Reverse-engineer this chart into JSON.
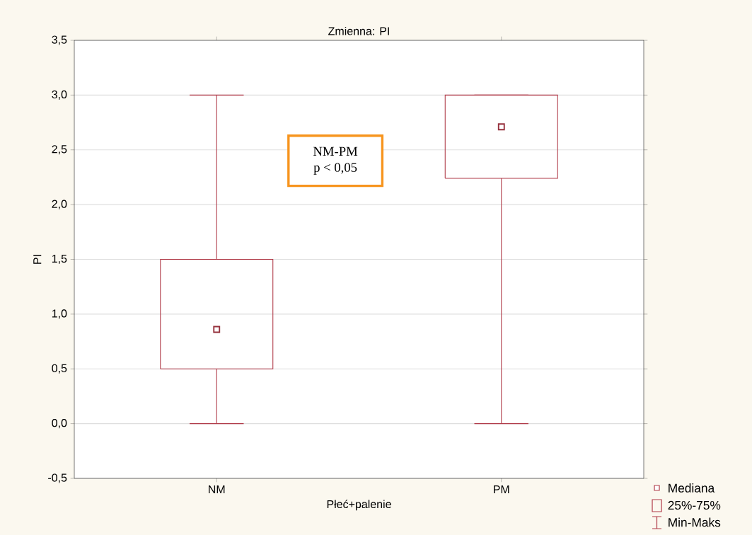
{
  "chart_data": {
    "type": "box",
    "title": "Zmienna:  PI",
    "xlabel": "Płeć+palenie",
    "ylabel": "PI",
    "categories": [
      "NM",
      "PM"
    ],
    "boxes": [
      {
        "low": 0,
        "q1": 0.5,
        "median": 0.86,
        "q3": 1.5,
        "high": 3.0
      },
      {
        "low": 0,
        "q1": 2.24,
        "median": 2.71,
        "q3": 3.0,
        "high": 3.0
      }
    ],
    "color": "#b03a48",
    "ylim": [
      -0.5,
      3.5
    ],
    "yticks": [
      {
        "value": -0.5,
        "label": "-0,5"
      },
      {
        "value": 0,
        "label": "0,0"
      },
      {
        "value": 0.5,
        "label": "0,5"
      },
      {
        "value": 1,
        "label": "1,0"
      },
      {
        "value": 1.5,
        "label": "1,5"
      },
      {
        "value": 2,
        "label": "2,0"
      },
      {
        "value": 2.5,
        "label": "2,5"
      },
      {
        "value": 3,
        "label": "3,0"
      },
      {
        "value": 3.5,
        "label": "3,5"
      }
    ],
    "grid": "y",
    "marker": "square",
    "annotations": [
      "NM-PM",
      "p < 0,05",
      "Mediana",
      "25%-75%",
      "Min-Maks"
    ]
  }
}
